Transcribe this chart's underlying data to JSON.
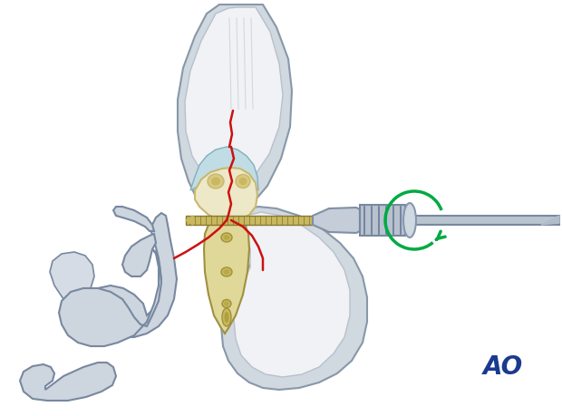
{
  "bg_color": "#ffffff",
  "ao_text": "AO",
  "ao_color": "#1a3a8f",
  "ao_fontsize": 20,
  "fig_width": 6.2,
  "fig_height": 4.59,
  "dpi": 100,
  "bone_fill": "#ede8c8",
  "bone_edge": "#c8b870",
  "soft_outer_fill": "#d0d8e0",
  "soft_outer_edge": "#8898a8",
  "soft_inner_fill": "#e8ecf0",
  "soft_inner_edge": "#aab4c0",
  "fracture_color": "#cc1111",
  "screw_fill": "#c8b860",
  "screw_edge": "#8a7830",
  "driver_fill": "#c0c8d4",
  "driver_edge": "#7888a0",
  "green_arrow": "#00aa44",
  "cartilage_fill": "#c0dce4",
  "cartilage_edge": "#80b0be",
  "plate_fill": "#e0d898",
  "plate_edge": "#a09040",
  "forceps_fill": "#cdd5de",
  "forceps_edge": "#7888a0"
}
